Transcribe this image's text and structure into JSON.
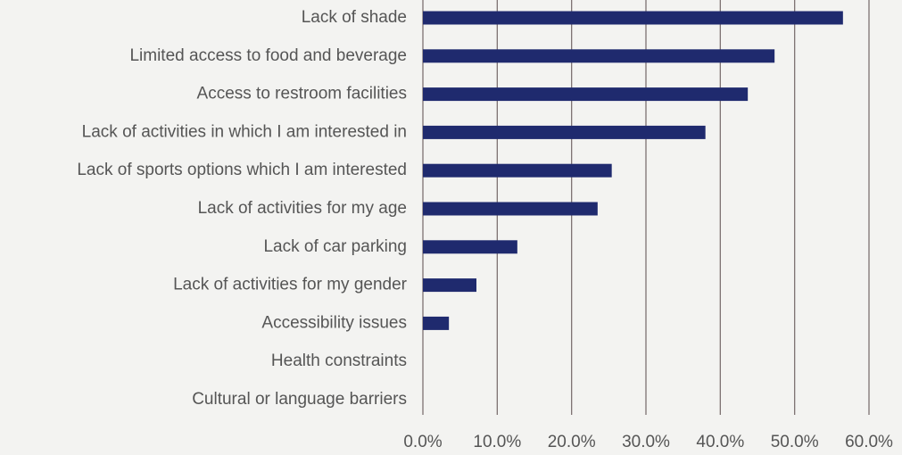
{
  "chart_data": {
    "type": "barh",
    "categories": [
      "Lack of shade",
      "Limited access to food and beverage",
      "Access to restroom facilities",
      "Lack of activities in which I am interested in",
      "Lack of sports options which I am interested",
      "Lack of activities for my age",
      "Lack of car parking",
      "Lack of activities for my gender",
      "Accessibility issues",
      "Health constraints",
      "Cultural or language barriers"
    ],
    "values": [
      56.5,
      47.3,
      43.7,
      38.0,
      25.4,
      23.5,
      12.7,
      7.2,
      3.5,
      0,
      0
    ],
    "color": "#1f2a6e",
    "xlim": [
      0,
      60
    ],
    "xticks": [
      {
        "value": 0,
        "label": "0.0%"
      },
      {
        "value": 10,
        "label": "10.0%"
      },
      {
        "value": 20,
        "label": "20.0%"
      },
      {
        "value": 30,
        "label": "30.0%"
      },
      {
        "value": 40,
        "label": "40.0%"
      },
      {
        "value": 50,
        "label": "50.0%"
      },
      {
        "value": 60,
        "label": "60.0%"
      }
    ],
    "grid": true
  }
}
